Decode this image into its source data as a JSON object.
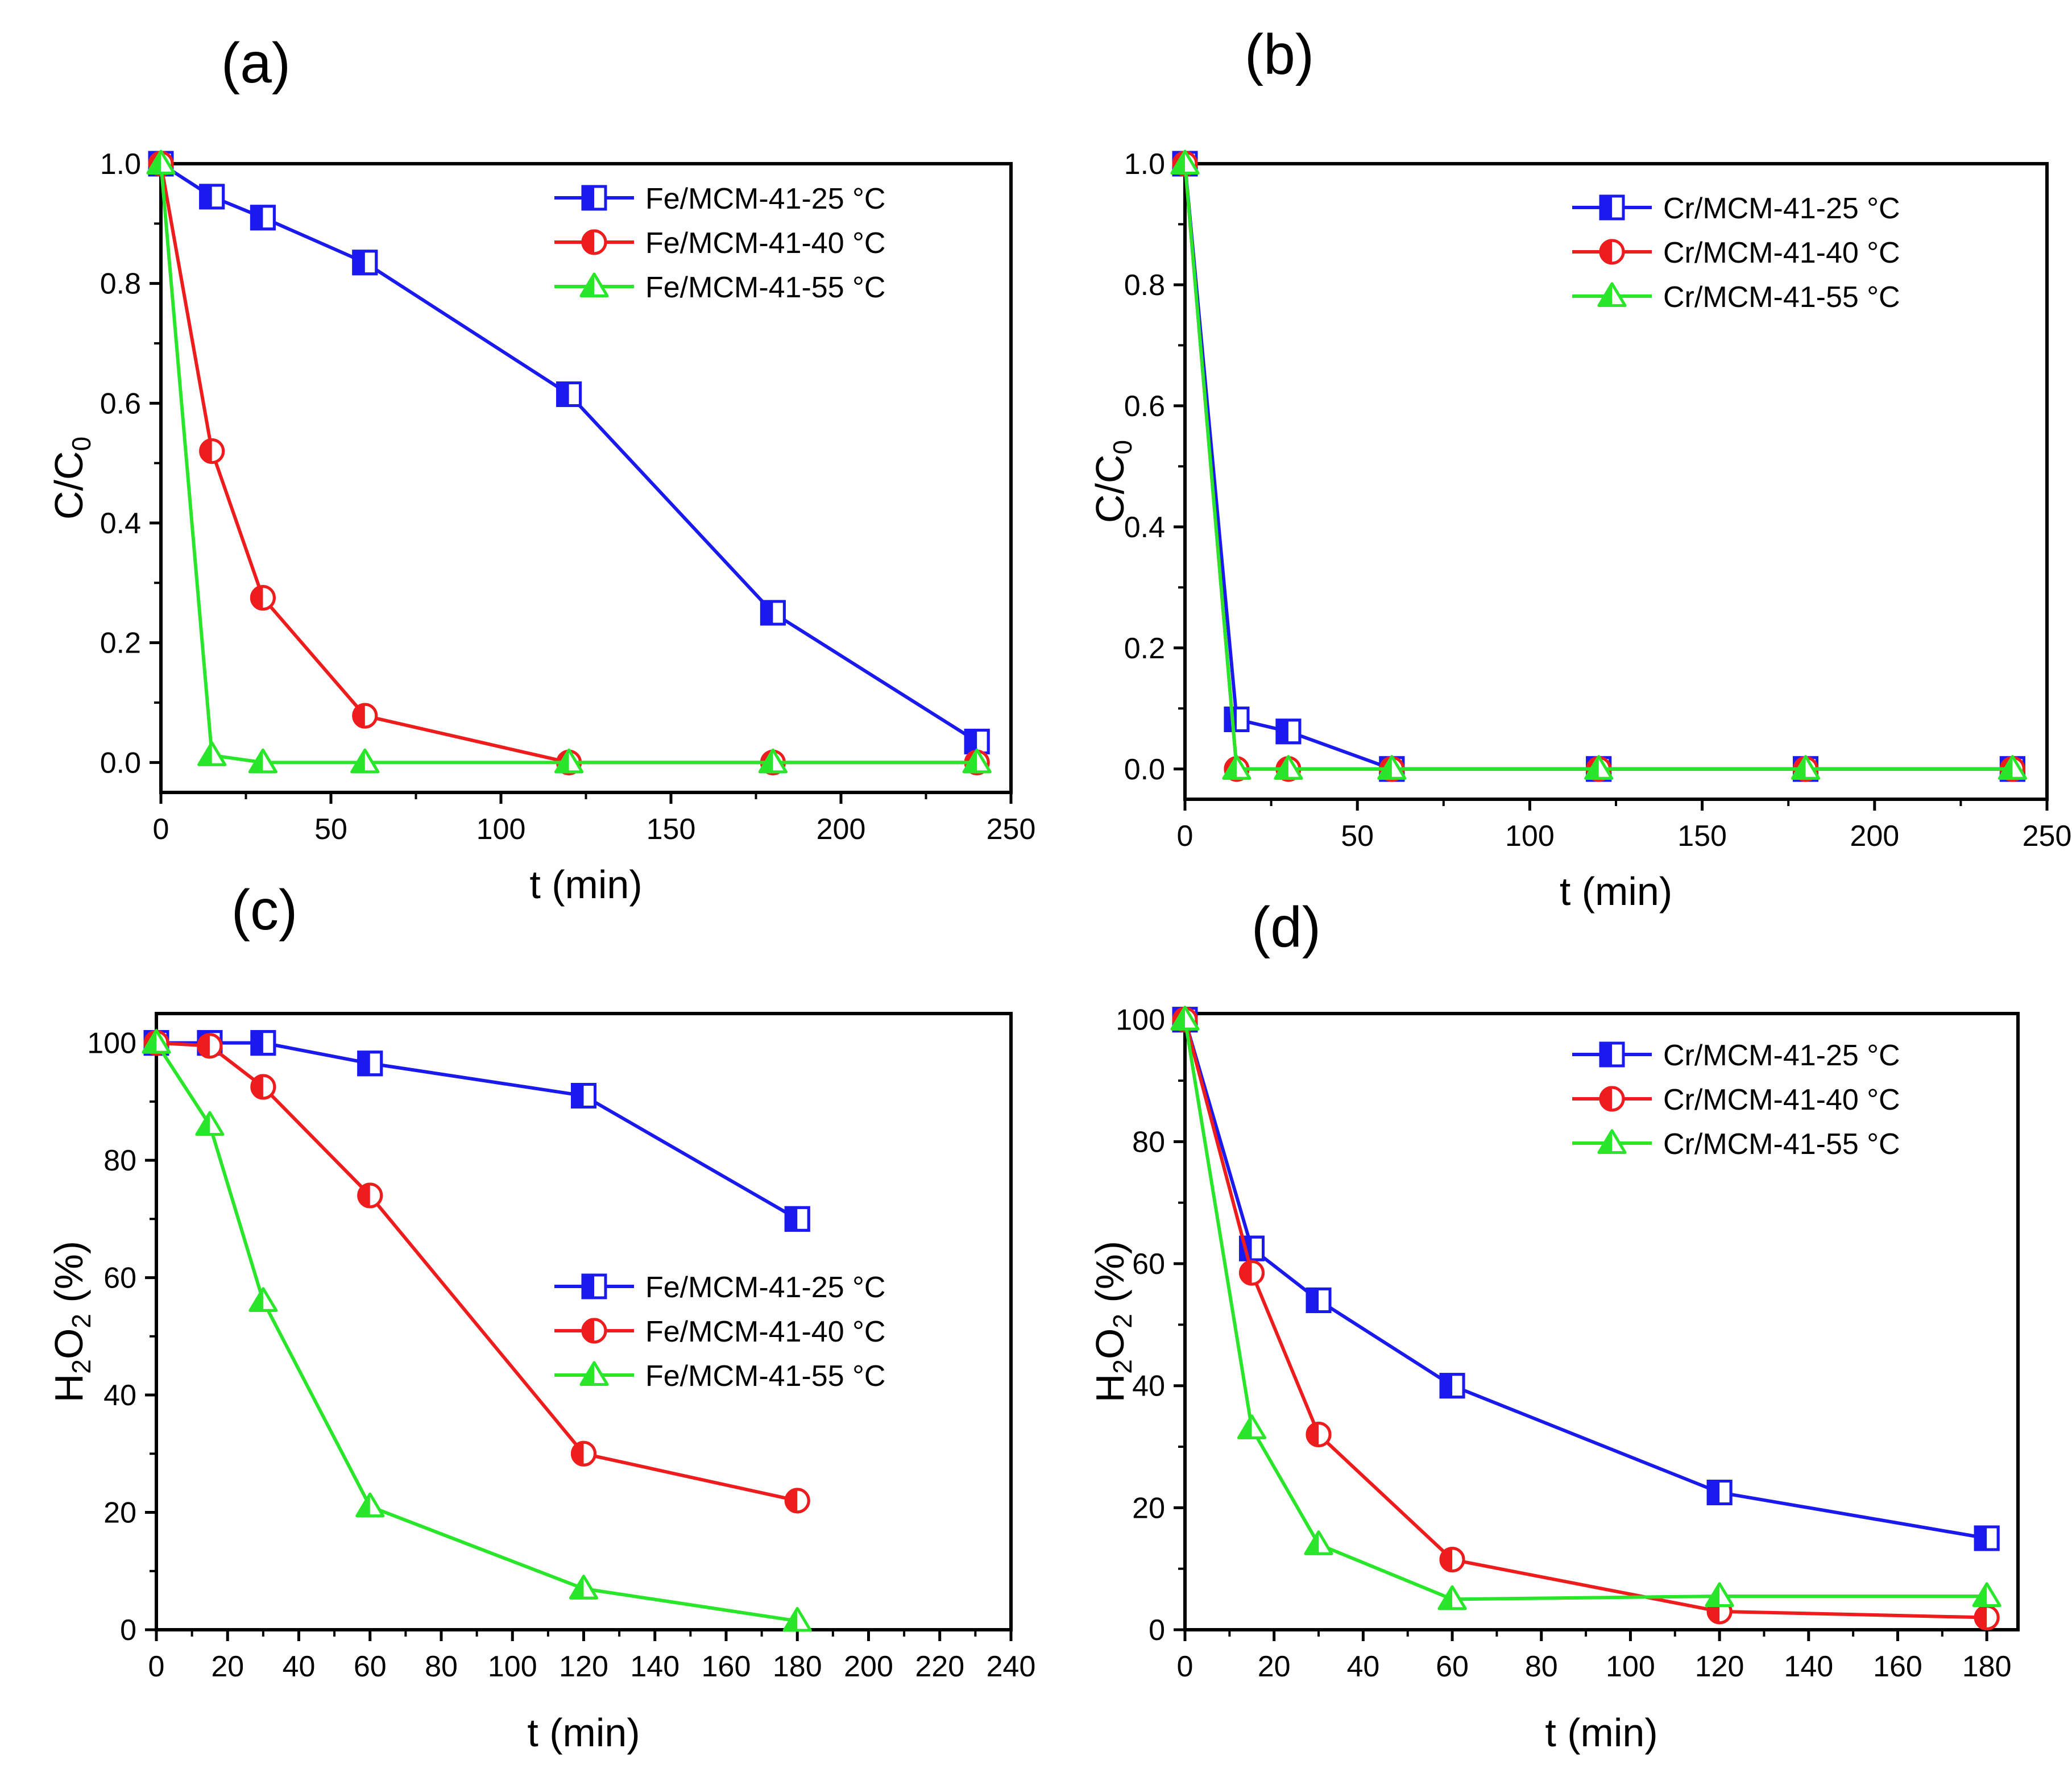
{
  "figure": {
    "colors": {
      "blue": "#1a1aee",
      "red": "#ee1c1c",
      "green": "#2ae62a"
    },
    "marker_icons": {
      "blue": "half-filled-square-icon",
      "red": "half-filled-circle-icon",
      "green": "half-filled-triangle-icon"
    }
  },
  "chart_data": [
    {
      "id": "a",
      "panel_label": "(a)",
      "type": "line",
      "xlabel": "t (min)",
      "ylabel": "C/C",
      "ylabel_sub": "0",
      "xlim": [
        0,
        250
      ],
      "ylim": [
        -0.05,
        1.0
      ],
      "xticks": [
        0,
        50,
        100,
        150,
        200,
        250
      ],
      "xtick_labels": [
        "0",
        "50",
        "100",
        "150",
        "200",
        "250"
      ],
      "yticks": [
        0.0,
        0.2,
        0.4,
        0.6,
        0.8,
        1.0
      ],
      "ytick_labels": [
        "0.0",
        "0.2",
        "0.4",
        "0.6",
        "0.8",
        "1.0"
      ],
      "legend_position": "top-right",
      "series": [
        {
          "name": "Fe/MCM-41-25 °C",
          "color": "#1a1aee",
          "marker": "square",
          "x": [
            0,
            15,
            30,
            60,
            120,
            180,
            240
          ],
          "y": [
            1.0,
            0.945,
            0.91,
            0.835,
            0.615,
            0.25,
            0.035
          ]
        },
        {
          "name": "Fe/MCM-41-40 °C",
          "color": "#ee1c1c",
          "marker": "circle",
          "x": [
            0,
            15,
            30,
            60,
            120,
            180,
            240
          ],
          "y": [
            1.0,
            0.52,
            0.275,
            0.078,
            0.0,
            0.0,
            0.0
          ]
        },
        {
          "name": "Fe/MCM-41-55 °C",
          "color": "#2ae62a",
          "marker": "triangle",
          "x": [
            0,
            15,
            30,
            60,
            120,
            180,
            240
          ],
          "y": [
            1.0,
            0.012,
            0.0,
            0.0,
            0.0,
            0.0,
            0.0
          ]
        }
      ]
    },
    {
      "id": "b",
      "panel_label": "(b)",
      "type": "line",
      "xlabel": "t (min)",
      "ylabel": "C/C",
      "ylabel_sub": "0",
      "xlim": [
        0,
        250
      ],
      "ylim": [
        -0.05,
        1.0
      ],
      "xticks": [
        0,
        50,
        100,
        150,
        200,
        250
      ],
      "xtick_labels": [
        "0",
        "50",
        "100",
        "150",
        "200",
        "250"
      ],
      "yticks": [
        0.0,
        0.2,
        0.4,
        0.6,
        0.8,
        1.0
      ],
      "ytick_labels": [
        "0.0",
        "0.2",
        "0.4",
        "0.6",
        "0.8",
        "1.0"
      ],
      "legend_position": "top-right",
      "series": [
        {
          "name": "Cr/MCM-41-25 °C",
          "color": "#1a1aee",
          "marker": "square",
          "x": [
            0,
            15,
            30,
            60,
            120,
            180,
            240
          ],
          "y": [
            1.0,
            0.082,
            0.062,
            0.0,
            0.0,
            0.0,
            0.0
          ]
        },
        {
          "name": "Cr/MCM-41-40 °C",
          "color": "#ee1c1c",
          "marker": "circle",
          "x": [
            0,
            15,
            30,
            60,
            120,
            180,
            240
          ],
          "y": [
            1.0,
            0.0,
            0.0,
            0.0,
            0.0,
            0.0,
            0.0
          ]
        },
        {
          "name": "Cr/MCM-41-55 °C",
          "color": "#2ae62a",
          "marker": "triangle",
          "x": [
            0,
            15,
            30,
            60,
            120,
            180,
            240
          ],
          "y": [
            1.0,
            0.0,
            0.0,
            0.0,
            0.0,
            0.0,
            0.0
          ]
        }
      ]
    },
    {
      "id": "c",
      "panel_label": "(c)",
      "type": "line",
      "xlabel": "t (min)",
      "ylabel": "H",
      "ylabel_sub": "2",
      "ylabel_mid": "O",
      "ylabel_sub2": "2",
      "ylabel_tail": " (%)",
      "xlim": [
        0,
        240
      ],
      "ylim": [
        0,
        105
      ],
      "xticks": [
        0,
        20,
        40,
        60,
        80,
        100,
        120,
        140,
        160,
        180,
        200,
        220,
        240
      ],
      "xtick_labels": [
        "0",
        "20",
        "40",
        "60",
        "80",
        "100",
        "120",
        "140",
        "160",
        "180",
        "200",
        "220",
        "240"
      ],
      "yticks": [
        0,
        20,
        40,
        60,
        80,
        100
      ],
      "ytick_labels": [
        "0",
        "20",
        "40",
        "60",
        "80",
        "100"
      ],
      "legend_position": "center-right",
      "series": [
        {
          "name": "Fe/MCM-41-25 °C",
          "color": "#1a1aee",
          "marker": "square",
          "x": [
            0,
            15,
            30,
            60,
            120,
            180
          ],
          "y": [
            100,
            100,
            100,
            96.5,
            91,
            70
          ]
        },
        {
          "name": "Fe/MCM-41-40 °C",
          "color": "#ee1c1c",
          "marker": "circle",
          "x": [
            0,
            15,
            30,
            60,
            120,
            180
          ],
          "y": [
            100,
            99.5,
            92.5,
            74,
            30,
            22
          ]
        },
        {
          "name": "Fe/MCM-41-55 °C",
          "color": "#2ae62a",
          "marker": "triangle",
          "x": [
            0,
            15,
            30,
            60,
            120,
            180
          ],
          "y": [
            100,
            86,
            56,
            21,
            7,
            1.5
          ]
        }
      ]
    },
    {
      "id": "d",
      "panel_label": "(d)",
      "type": "line",
      "xlabel": "t (min)",
      "ylabel": "H",
      "ylabel_sub": "2",
      "ylabel_mid": "O",
      "ylabel_sub2": "2",
      "ylabel_tail": " (%)",
      "xlim": [
        0,
        187
      ],
      "ylim": [
        0,
        101
      ],
      "xticks": [
        0,
        20,
        40,
        60,
        80,
        100,
        120,
        140,
        160,
        180
      ],
      "xtick_labels": [
        "0",
        "20",
        "40",
        "60",
        "80",
        "100",
        "120",
        "140",
        "160",
        "180"
      ],
      "yticks": [
        0,
        20,
        40,
        60,
        80,
        100
      ],
      "ytick_labels": [
        "0",
        "20",
        "40",
        "60",
        "80",
        "100"
      ],
      "legend_position": "top-right",
      "series": [
        {
          "name": "Cr/MCM-41-25 °C",
          "color": "#1a1aee",
          "marker": "square",
          "x": [
            0,
            15,
            30,
            60,
            120,
            180
          ],
          "y": [
            100,
            62.5,
            54,
            40,
            22.5,
            15
          ]
        },
        {
          "name": "Cr/MCM-41-40 °C",
          "color": "#ee1c1c",
          "marker": "circle",
          "x": [
            0,
            15,
            30,
            60,
            120,
            180
          ],
          "y": [
            100,
            58.5,
            32,
            11.5,
            3,
            2
          ]
        },
        {
          "name": "Cr/MCM-41-55 °C",
          "color": "#2ae62a",
          "marker": "triangle",
          "x": [
            0,
            15,
            30,
            60,
            120,
            180
          ],
          "y": [
            100,
            33,
            14,
            5,
            5.5,
            5.5
          ]
        }
      ]
    }
  ]
}
